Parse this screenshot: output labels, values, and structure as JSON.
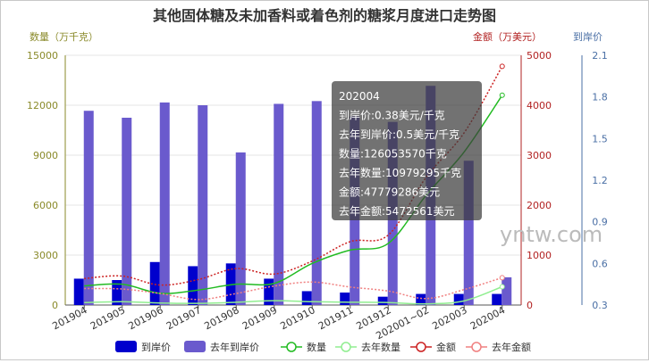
{
  "chart_data": {
    "type": "bar",
    "title": "其他固体糖及未加香料或着色剂的糖浆月度进口走势图",
    "categories": [
      "201904",
      "201905",
      "201906",
      "201907",
      "201908",
      "201909",
      "201910",
      "201911",
      "201912",
      "202001~02",
      "202003",
      "202004"
    ],
    "left_axis": {
      "label": "数量（万千克）",
      "ticks": [
        "0",
        "3000",
        "6000",
        "9000",
        "12000",
        "15000"
      ],
      "range": [
        0,
        15000
      ],
      "color": "#8a8a2a"
    },
    "mid_axis": {
      "label": "金额（万美元）",
      "ticks": [
        "0",
        "1000",
        "2000",
        "3000",
        "4000",
        "5000"
      ],
      "range": [
        0,
        5000
      ],
      "color": "#b22222"
    },
    "right_axis": {
      "label": "到岸价",
      "ticks": [
        "0.3",
        "0.6",
        "0.9",
        "1.2",
        "1.5",
        "1.8",
        "2.1"
      ],
      "range": [
        0.3,
        2.1
      ],
      "color": "#4a6fa5"
    },
    "series": [
      {
        "name": "到岸价",
        "type": "bar",
        "axis": "right",
        "color": "#0000cd",
        "values": [
          0.49,
          0.48,
          0.61,
          0.58,
          0.6,
          0.49,
          0.4,
          0.39,
          0.36,
          0.38,
          0.38,
          0.38
        ]
      },
      {
        "name": "去年到岸价",
        "type": "bar",
        "axis": "right",
        "color": "#6a5acd",
        "values": [
          1.7,
          1.65,
          1.76,
          1.74,
          1.4,
          1.75,
          1.77,
          1.66,
          1.62,
          1.88,
          1.34,
          0.5
        ]
      },
      {
        "name": "数量",
        "type": "line",
        "axis": "left",
        "color": "#22bb22",
        "values": [
          1150,
          1250,
          700,
          900,
          1250,
          1300,
          2500,
          3300,
          3700,
          6600,
          9200,
          12600
        ]
      },
      {
        "name": "去年数量",
        "type": "line",
        "axis": "left",
        "color": "#90ee90",
        "values": [
          150,
          200,
          120,
          100,
          170,
          260,
          200,
          170,
          150,
          70,
          250,
          1098
        ]
      },
      {
        "name": "金额",
        "type": "line",
        "axis": "mid",
        "color": "#cc2222",
        "values": [
          530,
          580,
          400,
          510,
          730,
          620,
          880,
          1270,
          1400,
          2560,
          3450,
          4780
        ]
      },
      {
        "name": "去年金额",
        "type": "line",
        "axis": "mid",
        "color": "#f08080",
        "values": [
          330,
          320,
          230,
          110,
          230,
          380,
          460,
          360,
          280,
          130,
          310,
          547
        ]
      }
    ],
    "legend_position": "bottom",
    "grid": "horizontal",
    "tooltip": {
      "lines": [
        "202004",
        "到岸价:0.38美元/千克",
        "去年到岸价:0.5美元/千克",
        "数量:126053570千克",
        "去年数量:10979295千克",
        "金额:47779286美元",
        "去年金额:5472561美元"
      ]
    },
    "watermark": "yntw.com"
  }
}
